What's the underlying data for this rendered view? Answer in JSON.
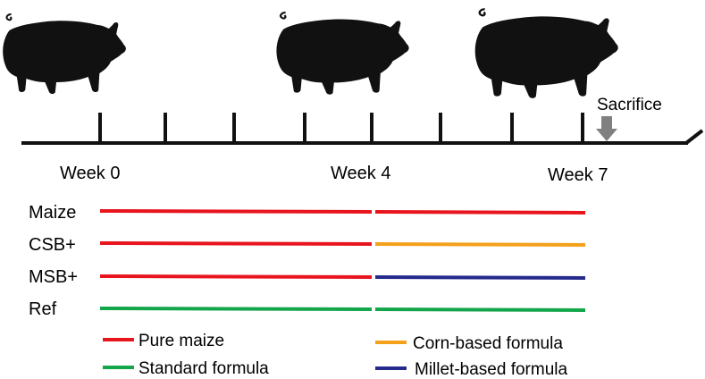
{
  "timeline": {
    "weeks": [
      {
        "label": "Week 0"
      },
      {
        "label": "Week 4"
      },
      {
        "label": "Week 7"
      }
    ],
    "event_label": "Sacrifice"
  },
  "groups": [
    {
      "label": "Maize",
      "phase1_diet": "Pure maize",
      "phase2_diet": "Pure maize"
    },
    {
      "label": "CSB+",
      "phase1_diet": "Pure maize",
      "phase2_diet": "Corn-based formula"
    },
    {
      "label": "MSB+",
      "phase1_diet": "Pure maize",
      "phase2_diet": "Millet-based formula"
    },
    {
      "label": "Ref",
      "phase1_diet": "Standard formula",
      "phase2_diet": "Standard formula"
    }
  ],
  "legend": [
    {
      "label": "Pure maize",
      "color": "#e8141e"
    },
    {
      "label": "Standard formula",
      "color": "#13a54a"
    },
    {
      "label": "Corn-based formula",
      "color": "#f5a01b"
    },
    {
      "label": "Millet-based formula",
      "color": "#252a8c"
    }
  ],
  "colors": {
    "arrow": "#808080",
    "line": "#111111",
    "pig": "#111111"
  }
}
